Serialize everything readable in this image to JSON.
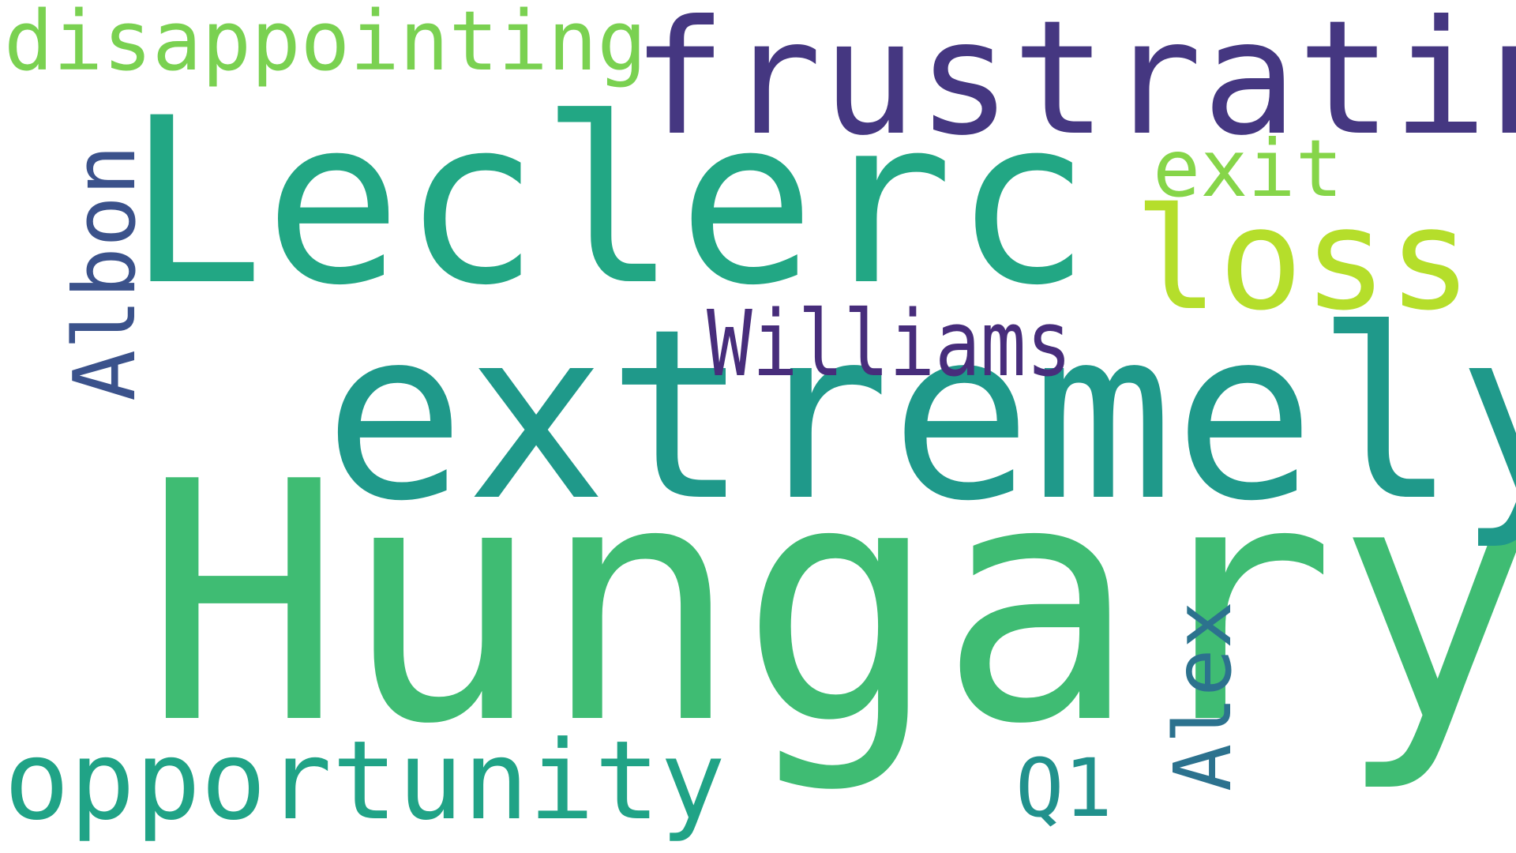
{
  "words": {
    "hungary": {
      "text": "Hungary",
      "color": "#3fbc73"
    },
    "leclerc": {
      "text": "Leclerc",
      "color": "#22a784"
    },
    "extremely": {
      "text": "extremely",
      "color": "#1f998a"
    },
    "frustrating": {
      "text": "frustrating",
      "color": "#453781"
    },
    "loss": {
      "text": "loss",
      "color": "#b5de2b"
    },
    "disappointing": {
      "text": "disappointing",
      "color": "#7ad151"
    },
    "exit": {
      "text": "exit",
      "color": "#86d549"
    },
    "williams": {
      "text": "Williams",
      "color": "#472d7b"
    },
    "opportunity": {
      "text": "opportunity",
      "color": "#20a386"
    },
    "q1": {
      "text": "Q1",
      "color": "#21918c"
    },
    "albon": {
      "text": "Albon",
      "color": "#3b528b"
    },
    "alex": {
      "text": "Alex",
      "color": "#2c728e"
    }
  }
}
